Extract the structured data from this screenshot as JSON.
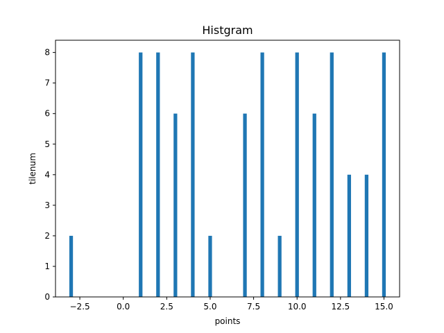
{
  "chart_data": {
    "type": "bar",
    "title": "Histgram",
    "xlabel": "points",
    "ylabel": "tilenum",
    "bars": [
      {
        "x": -3,
        "value": 2
      },
      {
        "x": 1,
        "value": 8
      },
      {
        "x": 2,
        "value": 8
      },
      {
        "x": 3,
        "value": 6
      },
      {
        "x": 4,
        "value": 8
      },
      {
        "x": 5,
        "value": 2
      },
      {
        "x": 7,
        "value": 6
      },
      {
        "x": 8,
        "value": 8
      },
      {
        "x": 9,
        "value": 2
      },
      {
        "x": 10,
        "value": 8
      },
      {
        "x": 11,
        "value": 6
      },
      {
        "x": 12,
        "value": 8
      },
      {
        "x": 13,
        "value": 4
      },
      {
        "x": 14,
        "value": 4
      },
      {
        "x": 15,
        "value": 8
      }
    ],
    "bar_width": 0.21,
    "xlim": [
      -3.9,
      15.9
    ],
    "ylim": [
      0,
      8.4
    ],
    "x_ticks": [
      -2.5,
      0.0,
      2.5,
      5.0,
      7.5,
      10.0,
      12.5,
      15.0
    ],
    "x_tick_labels": [
      "−2.5",
      "0.0",
      "2.5",
      "5.0",
      "7.5",
      "10.0",
      "12.5",
      "15.0"
    ],
    "y_ticks": [
      0,
      1,
      2,
      3,
      4,
      5,
      6,
      7,
      8
    ],
    "y_tick_labels": [
      "0",
      "1",
      "2",
      "3",
      "4",
      "5",
      "6",
      "7",
      "8"
    ],
    "bar_color": "#1f77b4",
    "grid": false,
    "legend": "none"
  }
}
